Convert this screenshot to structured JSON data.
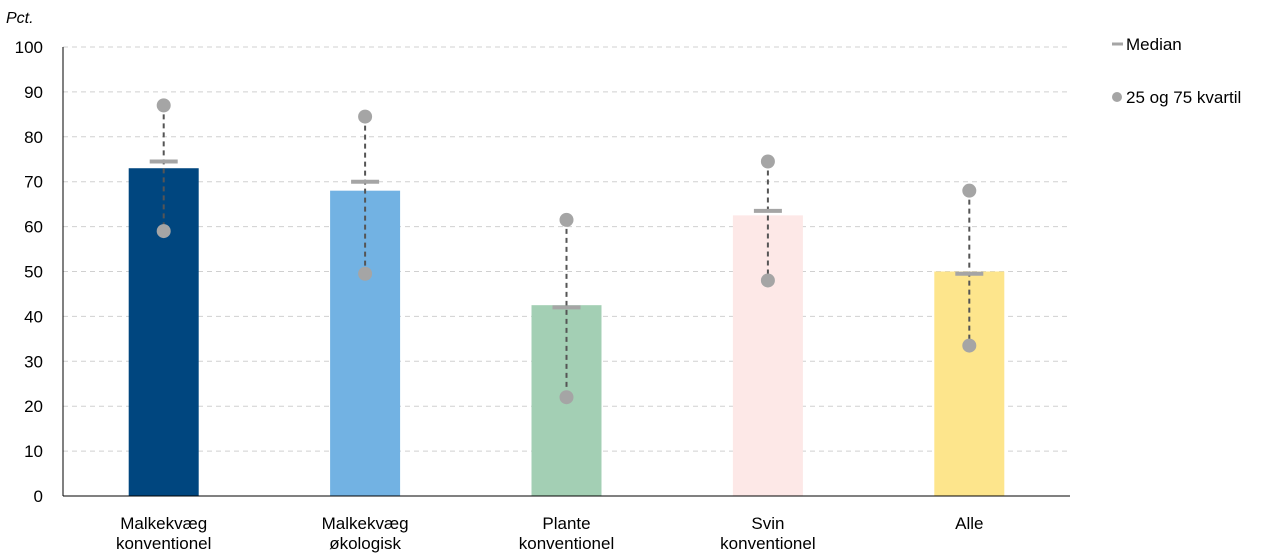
{
  "chart_data": {
    "type": "bar",
    "ylabel": "Pct.",
    "ylim": [
      0,
      100
    ],
    "yticks": [
      0,
      10,
      20,
      30,
      40,
      50,
      60,
      70,
      80,
      90,
      100
    ],
    "grid": true,
    "legend_position": "top-right",
    "categories": [
      [
        "Malkekvæg",
        "konventionel"
      ],
      [
        "Malkekvæg",
        "økologisk"
      ],
      [
        "Plante",
        "konventionel"
      ],
      [
        "Svin",
        "konventionel"
      ],
      [
        "Alle"
      ]
    ],
    "values": [
      73,
      68,
      42.5,
      62.5,
      50
    ],
    "median": [
      74.5,
      70,
      42,
      63.5,
      49.5
    ],
    "q25": [
      59,
      49.5,
      22,
      48,
      33.5
    ],
    "q75": [
      87,
      84.5,
      61.5,
      74.5,
      68
    ],
    "bar_colors": [
      "#00467f",
      "#72b2e3",
      "#a3cfb4",
      "#fde8e7",
      "#fde58c"
    ],
    "legend": [
      {
        "label": "Median",
        "marker": "dash",
        "color": "#a5a5a5"
      },
      {
        "label": "25 og 75 kvartil",
        "marker": "circle",
        "color": "#a5a5a5"
      }
    ]
  }
}
